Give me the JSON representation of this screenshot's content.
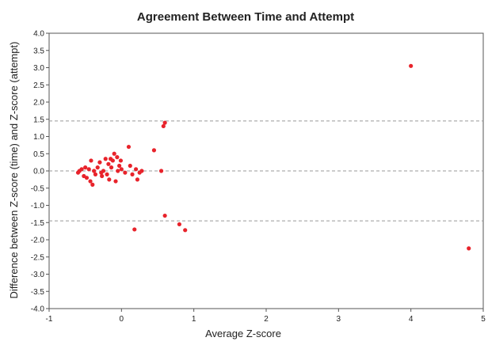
{
  "chart_data": {
    "type": "scatter",
    "title": "Agreement Between Time and Attempt",
    "xlabel": "Average Z-score",
    "ylabel": "Difference between Z-score (time) and Z-score (attempt)",
    "xlim": [
      -1,
      5
    ],
    "ylim": [
      -4.0,
      4.0
    ],
    "x_ticks": [
      "-1",
      "0",
      "1",
      "2",
      "3",
      "4",
      "5"
    ],
    "y_ticks": [
      "4.0",
      "3.5",
      "3.0",
      "2.5",
      "2.0",
      "1.5",
      "1.0",
      "0.5",
      "0.0",
      "-0.5",
      "-1.0",
      "-1.5",
      "-2.0",
      "-2.5",
      "-3.0",
      "-3.5",
      "-4.0"
    ],
    "reference_lines": [
      1.45,
      0.0,
      -1.45
    ],
    "grid": false,
    "marker_color": "#e8232b",
    "line_color": "#999999",
    "series": [
      {
        "points": [
          [
            -0.6,
            -0.05
          ],
          [
            -0.58,
            0.0
          ],
          [
            -0.55,
            0.05
          ],
          [
            -0.52,
            -0.15
          ],
          [
            -0.5,
            0.1
          ],
          [
            -0.48,
            -0.2
          ],
          [
            -0.45,
            0.05
          ],
          [
            -0.43,
            -0.3
          ],
          [
            -0.42,
            0.3
          ],
          [
            -0.4,
            -0.4
          ],
          [
            -0.38,
            0.0
          ],
          [
            -0.36,
            -0.1
          ],
          [
            -0.33,
            0.1
          ],
          [
            -0.3,
            0.25
          ],
          [
            -0.28,
            -0.05
          ],
          [
            -0.27,
            -0.15
          ],
          [
            -0.25,
            0.0
          ],
          [
            -0.22,
            0.35
          ],
          [
            -0.2,
            -0.1
          ],
          [
            -0.18,
            0.2
          ],
          [
            -0.17,
            -0.25
          ],
          [
            -0.15,
            0.35
          ],
          [
            -0.14,
            0.1
          ],
          [
            -0.12,
            0.3
          ],
          [
            -0.1,
            0.5
          ],
          [
            -0.08,
            -0.3
          ],
          [
            -0.06,
            0.4
          ],
          [
            -0.05,
            0.0
          ],
          [
            -0.03,
            0.15
          ],
          [
            -0.01,
            0.3
          ],
          [
            0.0,
            0.05
          ],
          [
            0.05,
            -0.05
          ],
          [
            0.1,
            0.7
          ],
          [
            0.12,
            0.15
          ],
          [
            0.15,
            -0.1
          ],
          [
            0.2,
            0.05
          ],
          [
            0.22,
            -0.25
          ],
          [
            0.25,
            -0.05
          ],
          [
            0.28,
            0.0
          ],
          [
            0.45,
            0.6
          ],
          [
            0.55,
            0.0
          ],
          [
            0.58,
            1.3
          ],
          [
            0.6,
            1.4
          ],
          [
            0.18,
            -1.7
          ],
          [
            0.6,
            -1.3
          ],
          [
            0.8,
            -1.55
          ],
          [
            0.88,
            -1.72
          ],
          [
            4.0,
            3.05
          ],
          [
            4.8,
            -2.25
          ]
        ]
      }
    ]
  }
}
